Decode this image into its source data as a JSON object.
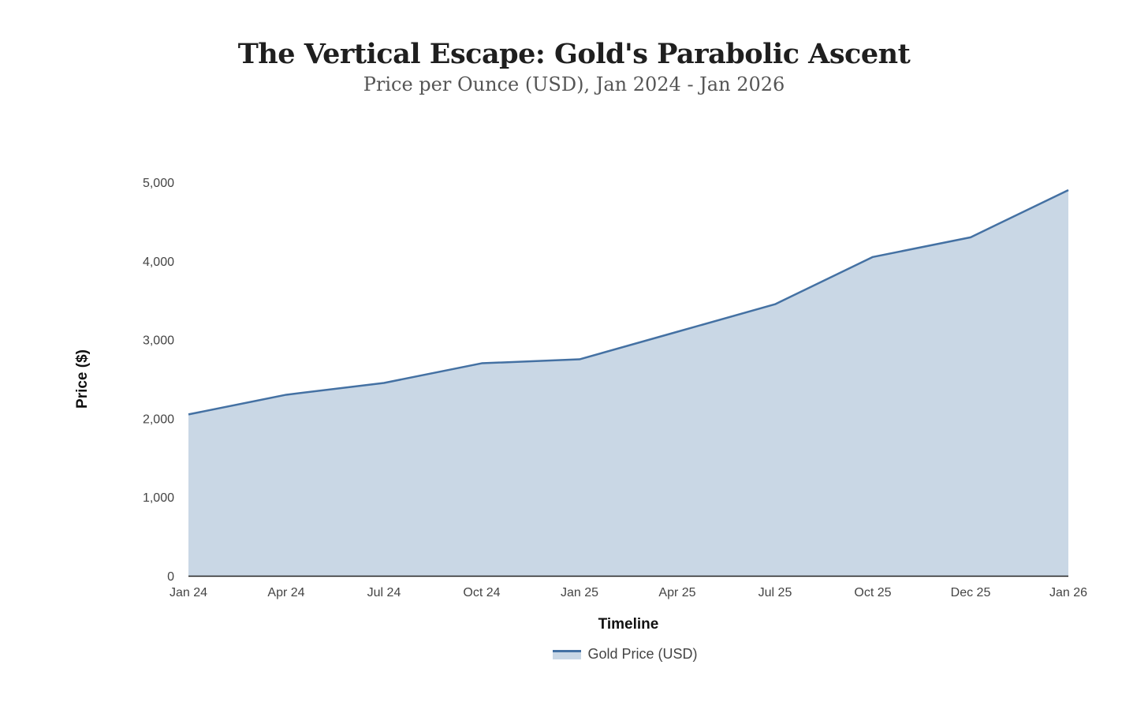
{
  "title": "The Vertical Escape: Gold's Parabolic Ascent",
  "subtitle": "Price per Ounce (USD), Jan 2024 - Jan 2026",
  "colors": {
    "line": "#4471a3",
    "fill": "#c9d7e5",
    "axis": "#222222"
  },
  "chart_data": {
    "type": "area",
    "title": "The Vertical Escape: Gold's Parabolic Ascent",
    "subtitle": "Price per Ounce (USD), Jan 2024 - Jan 2026",
    "xlabel": "Timeline",
    "ylabel": "Price ($)",
    "categories": [
      "Jan 24",
      "Apr 24",
      "Jul 24",
      "Oct 24",
      "Jan 25",
      "Apr 25",
      "Jul 25",
      "Oct 25",
      "Dec 25",
      "Jan 26"
    ],
    "series": [
      {
        "name": "Gold Price (USD)",
        "values": [
          2050,
          2300,
          2450,
          2700,
          2750,
          3100,
          3450,
          4050,
          4300,
          4900
        ]
      }
    ],
    "ylim": [
      0,
      5000
    ],
    "yticks": [
      0,
      1000,
      2000,
      3000,
      4000,
      5000
    ],
    "ytick_labels": [
      "0",
      "1,000",
      "2,000",
      "3,000",
      "4,000",
      "5,000"
    ],
    "grid": false,
    "legend": "bottom-center"
  }
}
